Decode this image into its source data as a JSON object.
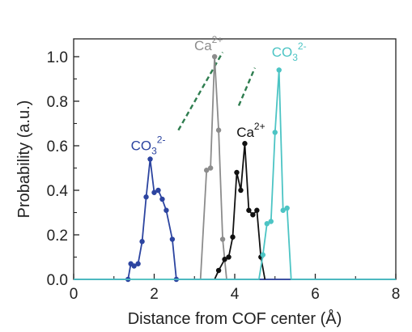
{
  "chart_data": {
    "type": "line",
    "title": "",
    "xlabel": "Distance from COF center (Å)",
    "ylabel": "Probability (a.u.)",
    "xlim": [
      0,
      8
    ],
    "ylim": [
      0,
      1.08
    ],
    "xticks": [
      "0",
      "2",
      "4",
      "6",
      "8"
    ],
    "yticks": [
      "0.0",
      "0.2",
      "0.4",
      "0.6",
      "0.8",
      "1.0"
    ],
    "xtick_values": [
      0,
      2,
      4,
      6,
      8
    ],
    "ytick_values": [
      0.0,
      0.2,
      0.4,
      0.6,
      0.8,
      1.0
    ],
    "grid": false,
    "legend": "none",
    "series": [
      {
        "color": "#2c44a0",
        "markers": true,
        "x": [
          0,
          1.35,
          1.42,
          1.5,
          1.6,
          1.7,
          1.8,
          1.9,
          2.0,
          2.1,
          2.2,
          2.3,
          2.45,
          2.55,
          8
        ],
        "y": [
          0,
          0,
          0.07,
          0.06,
          0.07,
          0.17,
          0.37,
          0.54,
          0.39,
          0.4,
          0.36,
          0.31,
          0.18,
          0,
          0
        ]
      },
      {
        "color": "#8c8c8c",
        "markers": true,
        "x": [
          3.15,
          3.3,
          3.4,
          3.5,
          3.6,
          3.7,
          3.8
        ],
        "y": [
          0,
          0.49,
          0.5,
          1.0,
          0.67,
          0.18,
          0
        ],
        "marker_x": [
          3.3,
          3.4,
          3.5,
          3.6,
          3.7
        ],
        "marker_y": [
          0.49,
          0.5,
          1.0,
          0.67,
          0.18
        ]
      },
      {
        "color": "#111111",
        "markers": true,
        "x": [
          3.5,
          3.6,
          3.75,
          3.85,
          3.95,
          4.05,
          4.15,
          4.25,
          4.35,
          4.45,
          4.55,
          4.65,
          4.75
        ],
        "y": [
          0,
          0.04,
          0.09,
          0.1,
          0.19,
          0.48,
          0.4,
          0.61,
          0.31,
          0.29,
          0.31,
          0.1,
          0
        ],
        "marker_x": [
          3.6,
          3.75,
          3.85,
          3.95,
          4.05,
          4.15,
          4.25,
          4.35,
          4.45,
          4.55,
          4.65
        ],
        "marker_y": [
          0.04,
          0.09,
          0.1,
          0.19,
          0.48,
          0.4,
          0.61,
          0.31,
          0.29,
          0.31,
          0.1
        ]
      },
      {
        "color": "#4cc4c4",
        "markers": true,
        "x": [
          0,
          4.6,
          4.7,
          4.8,
          4.9,
          5.0,
          5.1,
          5.2,
          5.3,
          5.4,
          8
        ],
        "y": [
          0,
          0,
          0.11,
          0.25,
          0.26,
          0.66,
          0.94,
          0.31,
          0.32,
          0,
          0
        ],
        "marker_x": [
          4.7,
          4.8,
          4.9,
          5.0,
          5.1,
          5.2,
          5.3
        ],
        "marker_y": [
          0.11,
          0.25,
          0.26,
          0.66,
          0.94,
          0.31,
          0.32
        ]
      }
    ],
    "annotations": [
      {
        "text": "CO3",
        "charge": "2-",
        "color": "#2c44a0",
        "x": 1.85,
        "y": 0.58,
        "line": [
          [
            2.6,
            0.67
          ],
          [
            3.7,
            1.02
          ]
        ]
      },
      {
        "text": "Ca",
        "charge": "2+",
        "color": "#8c8c8c",
        "x": 3.35,
        "y": 1.03
      },
      {
        "text": "Ca",
        "charge": "2+",
        "color": "#111111",
        "x": 4.4,
        "y": 0.64,
        "line": [
          [
            4.1,
            0.78
          ],
          [
            4.5,
            0.95
          ]
        ]
      },
      {
        "text": "CO3",
        "charge": "2-",
        "color": "#4cc4c4",
        "x": 5.35,
        "y": 1.0
      }
    ]
  }
}
